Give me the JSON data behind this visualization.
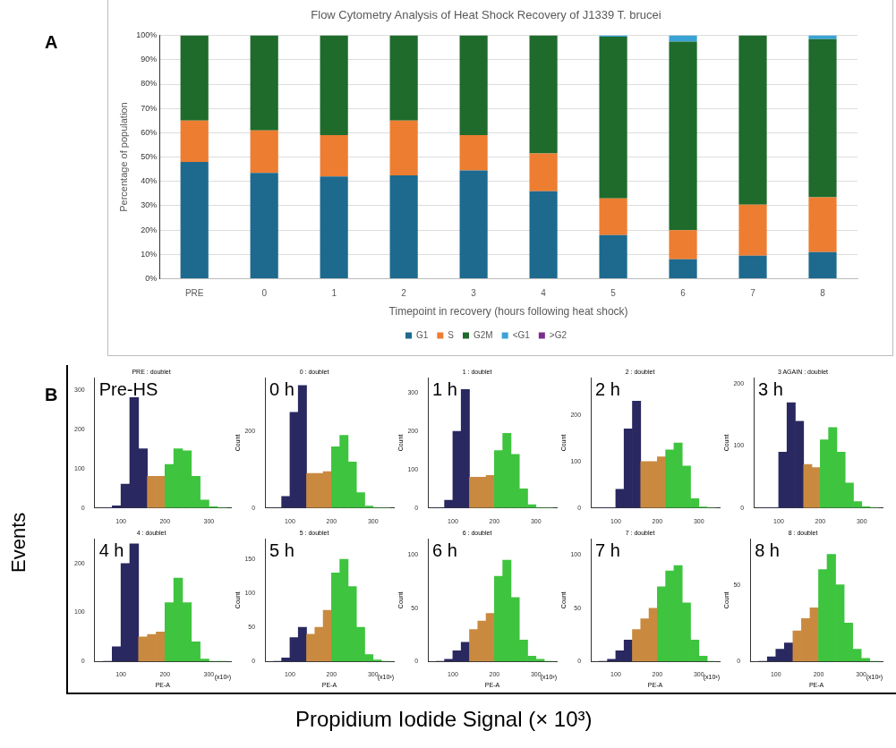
{
  "chart_data": [
    {
      "type": "bar",
      "title": "Flow Cytometry Analysis of Heat Shock Recovery of J1339 T. brucei",
      "xlabel": "Timepoint in recovery (hours following heat shock)",
      "ylabel": "Percentage of population",
      "stacked": true,
      "grid": "y",
      "legend": "bottom",
      "annotations": [
        "A"
      ],
      "categories": [
        "PRE",
        "0",
        "1",
        "2",
        "3",
        "4",
        "5",
        "6",
        "7",
        "8"
      ],
      "ylim": [
        0,
        100
      ],
      "yticks": [
        {
          "value": 0,
          "label": "0%"
        },
        {
          "value": 10,
          "label": "10%"
        },
        {
          "value": 20,
          "label": "20%"
        },
        {
          "value": 30,
          "label": "30%"
        },
        {
          "value": 40,
          "label": "40%"
        },
        {
          "value": 50,
          "label": "50%"
        },
        {
          "value": 60,
          "label": "60%"
        },
        {
          "value": 70,
          "label": "70%"
        },
        {
          "value": 80,
          "label": "80%"
        },
        {
          "value": 90,
          "label": "90%"
        },
        {
          "value": 100,
          "label": "100%"
        }
      ],
      "series": [
        {
          "name": "G1",
          "color": "#1d6a8e",
          "values": [
            48,
            43.5,
            42,
            42.5,
            44.5,
            36,
            18,
            8,
            9.5,
            11
          ]
        },
        {
          "name": "S",
          "color": "#ed7d31",
          "values": [
            17,
            17.5,
            17,
            22.5,
            14.5,
            15.5,
            15,
            12,
            21,
            22.5
          ]
        },
        {
          "name": "G2M",
          "color": "#1e6b2c",
          "values": [
            35,
            39,
            41,
            35,
            41,
            48.5,
            66.5,
            77.5,
            69.5,
            65
          ]
        },
        {
          "name": "<G1",
          "color": "#3aa3d6",
          "values": [
            0,
            0,
            0,
            0,
            0,
            0,
            0.5,
            2.5,
            0,
            1.5
          ]
        },
        {
          "name": ">G2",
          "color": "#7b2d8e",
          "values": [
            0,
            0,
            0,
            0,
            0,
            0,
            0,
            0,
            0,
            0
          ]
        }
      ]
    },
    {
      "type": "histogram",
      "title": "PRE : doublet",
      "annotations": [
        "Pre-HS",
        "B",
        "Events",
        "Propidium Iodide Signal (× 10³)"
      ],
      "bins": [
        60,
        80,
        100,
        120,
        140,
        160,
        180,
        200,
        220,
        240,
        260,
        280,
        300,
        320,
        340
      ],
      "values": [
        0,
        5,
        60,
        280,
        150,
        80,
        80,
        110,
        150,
        145,
        80,
        20,
        3,
        0
      ],
      "colors": [
        "#2a2860",
        "#2a2860",
        "#2a2860",
        "#2a2860",
        "#2a2860",
        "#c98a40",
        "#c98a40",
        "#3ec43e",
        "#3ec43e",
        "#3ec43e",
        "#3ec43e",
        "#3ec43e",
        "#3ec43e",
        "#3ec43e"
      ],
      "xlim": [
        40,
        350
      ],
      "xticks": [
        100,
        200,
        300
      ],
      "ylim": [
        0,
        330
      ],
      "yticks": [
        0,
        100,
        200,
        300
      ]
    },
    {
      "type": "histogram",
      "title": "0 : doublet",
      "ylabel": "Count",
      "annotations": [
        "0 h"
      ],
      "bins": [
        60,
        80,
        100,
        120,
        140,
        160,
        180,
        200,
        220,
        240,
        260,
        280,
        300,
        320,
        340
      ],
      "values": [
        0,
        30,
        250,
        320,
        90,
        90,
        95,
        160,
        190,
        120,
        40,
        5,
        0,
        0
      ],
      "colors": [
        "#2a2860",
        "#2a2860",
        "#2a2860",
        "#2a2860",
        "#c98a40",
        "#c98a40",
        "#c98a40",
        "#3ec43e",
        "#3ec43e",
        "#3ec43e",
        "#3ec43e",
        "#3ec43e",
        "#3ec43e",
        "#3ec43e"
      ],
      "xlim": [
        40,
        350
      ],
      "xticks": [
        100,
        200,
        300
      ],
      "ylim": [
        0,
        340
      ],
      "yticks": [
        0,
        200
      ]
    },
    {
      "type": "histogram",
      "title": "1 : doublet",
      "ylabel": "Count",
      "annotations": [
        "1 h"
      ],
      "bins": [
        60,
        80,
        100,
        120,
        140,
        160,
        180,
        200,
        220,
        240,
        260,
        280,
        300,
        320,
        340
      ],
      "values": [
        0,
        20,
        200,
        310,
        80,
        80,
        85,
        150,
        195,
        140,
        50,
        8,
        0,
        0
      ],
      "colors": [
        "#2a2860",
        "#2a2860",
        "#2a2860",
        "#2a2860",
        "#c98a40",
        "#c98a40",
        "#c98a40",
        "#3ec43e",
        "#3ec43e",
        "#3ec43e",
        "#3ec43e",
        "#3ec43e",
        "#3ec43e",
        "#3ec43e"
      ],
      "xlim": [
        40,
        350
      ],
      "xticks": [
        100,
        200,
        300
      ],
      "ylim": [
        0,
        340
      ],
      "yticks": [
        0,
        100,
        200,
        300
      ]
    },
    {
      "type": "histogram",
      "title": "2 : doublet",
      "ylabel": "Count",
      "annotations": [
        "2 h"
      ],
      "bins": [
        60,
        80,
        100,
        120,
        140,
        160,
        180,
        200,
        220,
        240,
        260,
        280,
        300,
        320,
        340
      ],
      "values": [
        0,
        0,
        40,
        170,
        230,
        100,
        100,
        110,
        125,
        140,
        90,
        20,
        2,
        0
      ],
      "colors": [
        "#2a2860",
        "#2a2860",
        "#2a2860",
        "#2a2860",
        "#2a2860",
        "#c98a40",
        "#c98a40",
        "#c98a40",
        "#3ec43e",
        "#3ec43e",
        "#3ec43e",
        "#3ec43e",
        "#3ec43e",
        "#3ec43e"
      ],
      "xlim": [
        40,
        350
      ],
      "xticks": [
        100,
        200,
        300
      ],
      "ylim": [
        0,
        280
      ],
      "yticks": [
        0,
        100,
        200
      ]
    },
    {
      "type": "histogram",
      "title": "3 AGAIN : doublet",
      "ylabel": "Count",
      "annotations": [
        "3 h"
      ],
      "bins": [
        60,
        80,
        100,
        120,
        140,
        160,
        180,
        200,
        220,
        240,
        260,
        280,
        300,
        320,
        340
      ],
      "values": [
        0,
        0,
        90,
        170,
        140,
        70,
        65,
        110,
        130,
        90,
        40,
        10,
        2,
        0
      ],
      "colors": [
        "#2a2860",
        "#2a2860",
        "#2a2860",
        "#2a2860",
        "#2a2860",
        "#c98a40",
        "#c98a40",
        "#3ec43e",
        "#3ec43e",
        "#3ec43e",
        "#3ec43e",
        "#3ec43e",
        "#3ec43e",
        "#3ec43e"
      ],
      "xlim": [
        40,
        350
      ],
      "xticks": [
        100,
        200,
        300
      ],
      "ylim": [
        0,
        210
      ],
      "yticks": [
        0,
        100,
        200
      ]
    },
    {
      "type": "histogram",
      "title": "4 : doublet",
      "xlabel": "PE-A",
      "annotations": [
        "4 h",
        "(x10³)"
      ],
      "bins": [
        60,
        80,
        100,
        120,
        140,
        160,
        180,
        200,
        220,
        240,
        260,
        280,
        300,
        320,
        340
      ],
      "values": [
        0,
        30,
        200,
        240,
        50,
        55,
        60,
        120,
        170,
        120,
        40,
        5,
        0,
        0
      ],
      "colors": [
        "#2a2860",
        "#2a2860",
        "#2a2860",
        "#2a2860",
        "#c98a40",
        "#c98a40",
        "#c98a40",
        "#3ec43e",
        "#3ec43e",
        "#3ec43e",
        "#3ec43e",
        "#3ec43e",
        "#3ec43e",
        "#3ec43e"
      ],
      "xlim": [
        40,
        350
      ],
      "xticks": [
        100,
        200,
        300
      ],
      "ylim": [
        0,
        250
      ],
      "yticks": [
        0,
        100,
        200
      ]
    },
    {
      "type": "histogram",
      "title": "5 : doublet",
      "ylabel": "Count",
      "xlabel": "PE-A",
      "annotations": [
        "5 h",
        "(x10³)"
      ],
      "bins": [
        60,
        80,
        100,
        120,
        140,
        160,
        180,
        200,
        220,
        240,
        260,
        280,
        300,
        320,
        340
      ],
      "values": [
        0,
        5,
        35,
        50,
        40,
        50,
        75,
        130,
        150,
        110,
        50,
        10,
        2,
        0
      ],
      "colors": [
        "#2a2860",
        "#2a2860",
        "#2a2860",
        "#2a2860",
        "#c98a40",
        "#c98a40",
        "#c98a40",
        "#3ec43e",
        "#3ec43e",
        "#3ec43e",
        "#3ec43e",
        "#3ec43e",
        "#3ec43e",
        "#3ec43e"
      ],
      "xlim": [
        40,
        350
      ],
      "xticks": [
        100,
        200,
        300
      ],
      "ylim": [
        0,
        180
      ],
      "yticks": [
        0,
        50,
        100,
        150
      ]
    },
    {
      "type": "histogram",
      "title": "6 : doublet",
      "ylabel": "Count",
      "xlabel": "PE-A",
      "annotations": [
        "6 h",
        "(x10³)"
      ],
      "bins": [
        60,
        80,
        100,
        120,
        140,
        160,
        180,
        200,
        220,
        240,
        260,
        280,
        300,
        320,
        340
      ],
      "values": [
        0,
        2,
        10,
        18,
        30,
        38,
        45,
        80,
        95,
        60,
        20,
        5,
        2,
        0
      ],
      "colors": [
        "#2a2860",
        "#2a2860",
        "#2a2860",
        "#2a2860",
        "#c98a40",
        "#c98a40",
        "#c98a40",
        "#3ec43e",
        "#3ec43e",
        "#3ec43e",
        "#3ec43e",
        "#3ec43e",
        "#3ec43e",
        "#3ec43e"
      ],
      "xlim": [
        40,
        350
      ],
      "xticks": [
        100,
        200,
        300
      ],
      "ylim": [
        0,
        115
      ],
      "yticks": [
        0,
        50,
        100
      ]
    },
    {
      "type": "histogram",
      "title": "7 : doublet",
      "ylabel": "Count",
      "xlabel": "PE-A",
      "annotations": [
        "7 h",
        "(x10³)"
      ],
      "bins": [
        60,
        80,
        100,
        120,
        140,
        160,
        180,
        200,
        220,
        240,
        260,
        280,
        300,
        320,
        340
      ],
      "values": [
        0,
        2,
        10,
        20,
        30,
        40,
        50,
        70,
        85,
        90,
        55,
        20,
        5,
        0
      ],
      "colors": [
        "#2a2860",
        "#2a2860",
        "#2a2860",
        "#2a2860",
        "#c98a40",
        "#c98a40",
        "#c98a40",
        "#3ec43e",
        "#3ec43e",
        "#3ec43e",
        "#3ec43e",
        "#3ec43e",
        "#3ec43e",
        "#3ec43e"
      ],
      "xlim": [
        40,
        350
      ],
      "xticks": [
        100,
        200,
        300
      ],
      "ylim": [
        0,
        115
      ],
      "yticks": [
        0,
        50,
        100
      ]
    },
    {
      "type": "histogram",
      "title": "8 : doublet",
      "ylabel": "Count",
      "xlabel": "PE-A",
      "annotations": [
        "8 h",
        "(x10³)"
      ],
      "bins": [
        60,
        80,
        100,
        120,
        140,
        160,
        180,
        200,
        220,
        240,
        260,
        280,
        300,
        320,
        340
      ],
      "values": [
        0,
        3,
        8,
        12,
        20,
        28,
        35,
        60,
        70,
        50,
        25,
        8,
        2,
        0
      ],
      "colors": [
        "#2a2860",
        "#2a2860",
        "#2a2860",
        "#2a2860",
        "#c98a40",
        "#c98a40",
        "#c98a40",
        "#3ec43e",
        "#3ec43e",
        "#3ec43e",
        "#3ec43e",
        "#3ec43e",
        "#3ec43e",
        "#3ec43e"
      ],
      "xlim": [
        40,
        350
      ],
      "xticks": [
        100,
        200,
        300
      ],
      "ylim": [
        0,
        80
      ],
      "yticks": [
        0,
        50
      ]
    }
  ]
}
